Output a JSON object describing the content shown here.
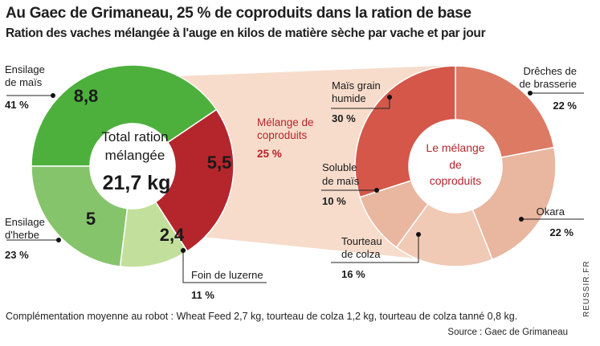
{
  "title": "Au Gaec de Grimaneau, 25 % de coproduits dans la ration de base",
  "subtitle": "Ration des vaches mélangée à l'auge en kilos de matière sèche par vache et par jour",
  "footnote": "Complémentation moyenne au robot  : Wheat Feed 2,7 kg, tourteau  de colza 1,2 kg, tourteau de colza tanné 0,8 kg.",
  "source": "Source : Gaec de Grimaneau",
  "brand": "REUSSIR.FR",
  "colors": {
    "ensilage_mais": "#4db03d",
    "ensilage_herbe": "#86c46c",
    "foin_luzerne": "#c2df9c",
    "melange": "#b5262c",
    "funnel": "#f7dccb",
    "right_1": "#d4574a",
    "right_2": "#dc7a64",
    "right_3": "#e9b69f",
    "right_4": "#f0cab5",
    "center_text_right": "#b5262c"
  },
  "chart_data": [
    {
      "type": "pie",
      "title": "Total ration mélangée",
      "center_label": [
        "Total ration",
        "mélangée"
      ],
      "center_value": "21,7 kg",
      "unit": "kg MS/vache/jour",
      "slices": [
        {
          "name": "Ensilage de maïs",
          "label_lines": [
            "Ensilage",
            "de maïs"
          ],
          "value": 8.8,
          "value_label": "8,8",
          "percent_label": "41 %"
        },
        {
          "name": "Mélange de coproduits",
          "label_lines": [
            "Mélange de",
            "coproduits"
          ],
          "value": 5.5,
          "value_label": "5,5",
          "percent_label": "25 %"
        },
        {
          "name": "Foin de luzerne",
          "label_lines": [
            "Foin de luzerne"
          ],
          "value": 2.4,
          "value_label": "2,4",
          "percent_label": "11 %"
        },
        {
          "name": "Ensilage d'herbe",
          "label_lines": [
            "Ensilage",
            "d'herbe"
          ],
          "value": 5,
          "value_label": "5",
          "percent_label": "23 %"
        }
      ]
    },
    {
      "type": "pie",
      "title": "Le mélange de coproduits",
      "center_label": [
        "Le mélange",
        "de",
        "coproduits"
      ],
      "slices": [
        {
          "name": "Drêches de brasserie",
          "label_lines": [
            "Drêches de",
            "de brasserie"
          ],
          "value": 22,
          "percent_label": "22 %"
        },
        {
          "name": "Okara",
          "label_lines": [
            "Okara"
          ],
          "value": 22,
          "percent_label": "22 %"
        },
        {
          "name": "Tourteau de colza",
          "label_lines": [
            "Tourteau",
            "de colza"
          ],
          "value": 16,
          "percent_label": "16 %"
        },
        {
          "name": "Soluble de maïs",
          "label_lines": [
            "Soluble",
            "de maïs"
          ],
          "value": 10,
          "percent_label": "10 %"
        },
        {
          "name": "Maïs grain humide",
          "label_lines": [
            "Maïs grain",
            "humide"
          ],
          "value": 30,
          "percent_label": "30 %"
        }
      ]
    }
  ]
}
